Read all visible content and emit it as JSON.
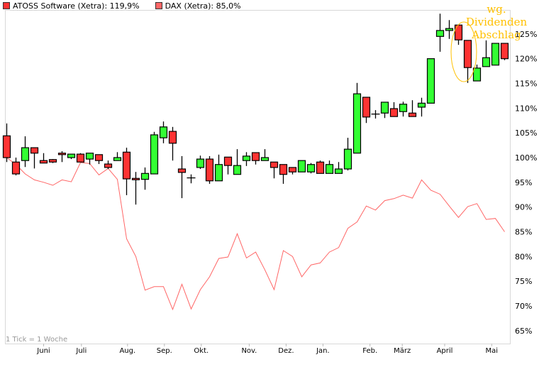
{
  "legend": [
    {
      "label": "ATOSS Software (Xetra): 119,9%",
      "color": "#ff3333"
    },
    {
      "label": "DAX (Xetra): 85,0%",
      "color": "#ff6666"
    }
  ],
  "chart_data": {
    "type": "candlestick+line",
    "title": "",
    "xlabel": "",
    "ylabel": "",
    "ylim": [
      63,
      130
    ],
    "grid": false,
    "legend_placement": "top-left",
    "footnote": "1 Tick = 1 Woche",
    "annotation": {
      "text": [
        "wg.",
        "Dividenden",
        "Abschlag"
      ],
      "color": "#ffc000",
      "marks_week": 50
    },
    "y_ticks": [
      "65%",
      "70%",
      "75%",
      "80%",
      "85%",
      "90%",
      "95%",
      "100%",
      "105%",
      "110%",
      "115%",
      "120%",
      "125%"
    ],
    "y_tick_values": [
      65,
      70,
      75,
      80,
      85,
      90,
      95,
      100,
      105,
      110,
      115,
      120,
      125
    ],
    "x_ticks": [
      {
        "label": "Juni",
        "week": 4.0
      },
      {
        "label": "Juli",
        "week": 8.1
      },
      {
        "label": "Aug.",
        "week": 13.1
      },
      {
        "label": "Sep.",
        "week": 17.1
      },
      {
        "label": "Okt.",
        "week": 21.1
      },
      {
        "label": "Nov.",
        "week": 26.3
      },
      {
        "label": "Dez.",
        "week": 30.3
      },
      {
        "label": "Jan.",
        "week": 34.3
      },
      {
        "label": "Feb.",
        "week": 39.4
      },
      {
        "label": "März",
        "week": 42.9
      },
      {
        "label": "April",
        "week": 47.5
      },
      {
        "label": "Mai",
        "week": 52.6
      }
    ],
    "colors": {
      "up": "#33ff33",
      "down": "#ff3333",
      "dax": "#ff6666"
    },
    "series": [
      {
        "name": "ATOSS Software (Xetra)",
        "type": "candlestick",
        "ohlc": [
          [
            104.4,
            106.9,
            99.1,
            100.0
          ],
          [
            99.1,
            100.0,
            96.4,
            96.7
          ],
          [
            99.4,
            104.3,
            98.1,
            102.0
          ],
          [
            102.0,
            102.0,
            97.8,
            100.9
          ],
          [
            99.4,
            100.9,
            98.9,
            98.9
          ],
          [
            99.6,
            99.7,
            98.9,
            99.1
          ],
          [
            100.9,
            101.3,
            99.1,
            100.6
          ],
          [
            100.0,
            100.7,
            99.7,
            100.7
          ],
          [
            100.7,
            100.9,
            99.1,
            99.1
          ],
          [
            99.7,
            100.9,
            98.6,
            100.9
          ],
          [
            100.6,
            100.6,
            98.7,
            99.4
          ],
          [
            98.7,
            99.4,
            97.7,
            98.0
          ],
          [
            99.4,
            101.1,
            99.4,
            100.0
          ],
          [
            101.1,
            102.0,
            92.4,
            95.7
          ],
          [
            95.8,
            97.1,
            90.5,
            95.6
          ],
          [
            95.6,
            98.0,
            93.5,
            96.8
          ],
          [
            96.7,
            105.2,
            96.7,
            104.6
          ],
          [
            104.0,
            107.3,
            102.9,
            106.2
          ],
          [
            105.3,
            106.2,
            99.4,
            102.9
          ],
          [
            97.7,
            100.3,
            91.8,
            97.0
          ],
          [
            95.9,
            96.6,
            94.8,
            95.9
          ],
          [
            98.0,
            100.4,
            97.7,
            99.7
          ],
          [
            99.7,
            100.3,
            94.7,
            95.3
          ],
          [
            95.3,
            100.6,
            95.3,
            98.6
          ],
          [
            100.1,
            100.1,
            96.6,
            98.4
          ],
          [
            96.6,
            101.7,
            96.6,
            98.4
          ],
          [
            99.4,
            101.1,
            98.3,
            100.3
          ],
          [
            101.0,
            101.0,
            98.6,
            99.4
          ],
          [
            99.4,
            101.7,
            99.4,
            100.0
          ],
          [
            99.1,
            99.1,
            95.8,
            98.0
          ],
          [
            98.6,
            98.6,
            94.7,
            96.6
          ],
          [
            98.0,
            98.0,
            96.6,
            97.1
          ],
          [
            97.1,
            99.4,
            97.1,
            99.4
          ],
          [
            97.1,
            98.9,
            96.8,
            98.6
          ],
          [
            99.1,
            99.4,
            96.8,
            96.8
          ],
          [
            96.8,
            99.4,
            96.8,
            98.6
          ],
          [
            96.8,
            99.1,
            96.8,
            97.7
          ],
          [
            97.7,
            104.0,
            97.4,
            101.7
          ],
          [
            100.9,
            115.1,
            100.9,
            112.9
          ],
          [
            112.2,
            112.2,
            107.0,
            108.2
          ],
          [
            108.8,
            109.6,
            107.9,
            108.8
          ],
          [
            109.0,
            111.2,
            108.0,
            111.2
          ],
          [
            109.9,
            111.2,
            108.3,
            108.3
          ],
          [
            109.3,
            111.3,
            108.3,
            110.8
          ],
          [
            109.0,
            111.6,
            108.3,
            108.3
          ],
          [
            110.2,
            112.1,
            108.3,
            111.0
          ],
          [
            111.0,
            120.0,
            111.0,
            120.0
          ],
          [
            124.5,
            129.1,
            121.4,
            125.7
          ],
          [
            125.7,
            127.8,
            124.0,
            126.1
          ],
          [
            126.8,
            126.8,
            122.8,
            123.8
          ],
          [
            123.7,
            123.7,
            115.1,
            118.2
          ],
          [
            115.5,
            118.8,
            115.5,
            118.1
          ],
          [
            118.4,
            123.7,
            118.4,
            120.2
          ],
          [
            118.7,
            123.1,
            118.7,
            123.1
          ],
          [
            123.1,
            123.1,
            119.7,
            120.0
          ]
        ]
      },
      {
        "name": "DAX (Xetra)",
        "type": "line",
        "values": [
          100.0,
          98.6,
          96.7,
          95.5,
          95.0,
          94.4,
          95.5,
          95.1,
          99.0,
          98.8,
          96.5,
          97.8,
          95.6,
          83.6,
          80.0,
          73.2,
          73.9,
          73.9,
          69.3,
          74.4,
          69.4,
          73.3,
          75.9,
          79.6,
          79.9,
          84.6,
          79.7,
          80.9,
          77.3,
          73.3,
          81.2,
          80.0,
          75.9,
          78.3,
          78.7,
          80.9,
          81.8,
          85.7,
          87.0,
          90.2,
          89.4,
          91.3,
          91.7,
          92.4,
          91.8,
          95.5,
          93.4,
          92.6,
          90.2,
          87.9,
          90.1,
          90.7,
          87.5,
          87.7,
          85.0
        ]
      }
    ]
  }
}
